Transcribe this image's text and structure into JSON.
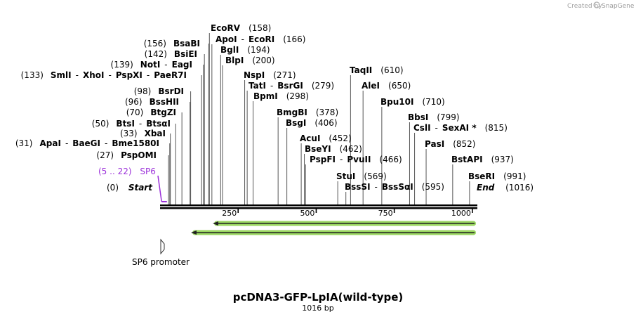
{
  "credit": {
    "prefix": "Created by",
    "brand": "SnapGene"
  },
  "title": "pcDNA3-GFP-LpIA(wild-type)",
  "length_label": "1016 bp",
  "sequence_length": 1016,
  "axis_ticks": [
    {
      "value": 250,
      "label": "250"
    },
    {
      "value": 500,
      "label": "500"
    },
    {
      "value": 750,
      "label": "750"
    },
    {
      "value": 1000,
      "label": "1000"
    }
  ],
  "start_label": {
    "pos": "(0)",
    "name": "Start",
    "bp": 0
  },
  "end_label": {
    "name": "End",
    "pos": "(1016)",
    "bp": 1016
  },
  "primer": {
    "pos": "(5 .. 22)",
    "name": "SP6",
    "start": 5,
    "end": 22
  },
  "feature": {
    "name": "SP6 promoter",
    "color": "#ffffff"
  },
  "orf_color": "#8fd14f",
  "orf_arrows": [
    {
      "direction": "left"
    },
    {
      "direction": "left"
    }
  ],
  "left_sites": [
    {
      "pos": "(27)",
      "names": [
        "PspOMI"
      ],
      "bp": 27
    },
    {
      "pos": "(31)",
      "names": [
        "ApaI",
        "BaeGI",
        "Bme1580I"
      ],
      "bp": 31
    },
    {
      "pos": "(33)",
      "names": [
        "XbaI"
      ],
      "bp": 33
    },
    {
      "pos": "(50)",
      "names": [
        "BtsI",
        "BtsαI"
      ],
      "bp": 50
    },
    {
      "pos": "(70)",
      "names": [
        "BtgZI"
      ],
      "bp": 70
    },
    {
      "pos": "(96)",
      "names": [
        "BssHII"
      ],
      "bp": 96
    },
    {
      "pos": "(98)",
      "names": [
        "BsrDI"
      ],
      "bp": 98
    },
    {
      "pos": "(133)",
      "names": [
        "SmlI",
        "XhoI",
        "PspXI",
        "PaeR7I"
      ],
      "bp": 133
    },
    {
      "pos": "(139)",
      "names": [
        "NotI",
        "EagI"
      ],
      "bp": 139
    },
    {
      "pos": "(142)",
      "names": [
        "BsiEI"
      ],
      "bp": 142
    },
    {
      "pos": "(156)",
      "names": [
        "BsaBI"
      ],
      "bp": 156
    }
  ],
  "right_sites": [
    {
      "names": [
        "EcoRV"
      ],
      "pos": "(158)",
      "bp": 158
    },
    {
      "names": [
        "ApoI",
        "EcoRI"
      ],
      "pos": "(166)",
      "bp": 166
    },
    {
      "names": [
        "BglI"
      ],
      "pos": "(194)",
      "bp": 194
    },
    {
      "names": [
        "BlpI"
      ],
      "pos": "(200)",
      "bp": 200
    },
    {
      "names": [
        "NspI"
      ],
      "pos": "(271)",
      "bp": 271
    },
    {
      "names": [
        "TatI",
        "BsrGI"
      ],
      "pos": "(279)",
      "bp": 279
    },
    {
      "names": [
        "BpmI"
      ],
      "pos": "(298)",
      "bp": 298
    },
    {
      "names": [
        "BmgBI"
      ],
      "pos": "(378)",
      "bp": 378
    },
    {
      "names": [
        "BsgI"
      ],
      "pos": "(406)",
      "bp": 406
    },
    {
      "names": [
        "AcuI"
      ],
      "pos": "(452)",
      "bp": 452
    },
    {
      "names": [
        "BseYI"
      ],
      "pos": "(462)",
      "bp": 462
    },
    {
      "names": [
        "PspFI",
        "PvuII"
      ],
      "pos": "(466)",
      "bp": 466
    },
    {
      "names": [
        "StuI"
      ],
      "pos": "(569)",
      "bp": 569
    },
    {
      "names": [
        "BssSI",
        "BssSαI"
      ],
      "pos": "(595)",
      "bp": 595
    },
    {
      "names": [
        "TaqII"
      ],
      "pos": "(610)",
      "bp": 610
    },
    {
      "names": [
        "AleI"
      ],
      "pos": "(650)",
      "bp": 650
    },
    {
      "names": [
        "Bpu10I"
      ],
      "pos": "(710)",
      "bp": 710
    },
    {
      "names": [
        "BbsI"
      ],
      "pos": "(799)",
      "bp": 799
    },
    {
      "names": [
        "CslI",
        "SexAI *"
      ],
      "pos": "(815)",
      "bp": 815
    },
    {
      "names": [
        "PasI"
      ],
      "pos": "(852)",
      "bp": 852
    },
    {
      "names": [
        "BstAPI"
      ],
      "pos": "(937)",
      "bp": 937
    },
    {
      "names": [
        "BseRI"
      ],
      "pos": "(991)",
      "bp": 991
    }
  ]
}
